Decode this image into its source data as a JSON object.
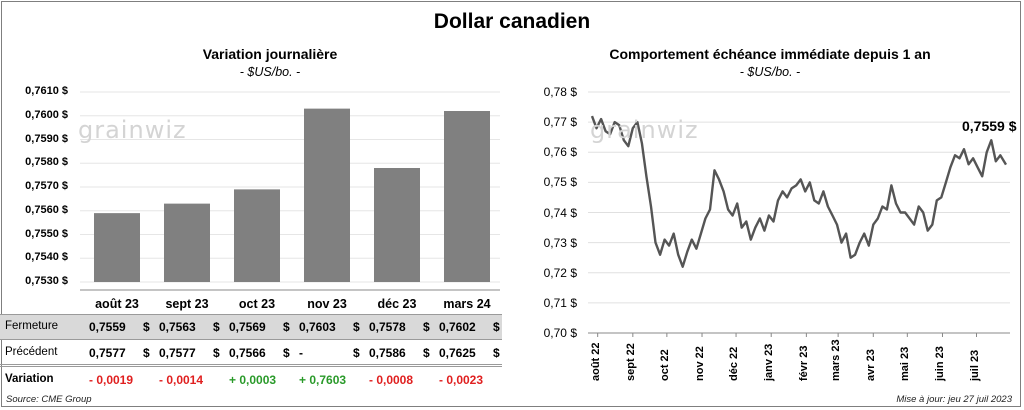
{
  "title": "Dollar canadien",
  "left_chart": {
    "title": "Variation  journalière",
    "subtitle": "- $US/bo. -",
    "y_ticks": [
      "0,7610 $",
      "0,7600 $",
      "0,7590 $",
      "0,7580 $",
      "0,7570 $",
      "0,7560 $",
      "0,7550 $",
      "0,7540 $",
      "0,7530 $"
    ],
    "watermark": "grainwiz"
  },
  "right_chart": {
    "title": "Comportement échéance immédiate depuis 1 an",
    "subtitle": "- $US/bo. -",
    "y_ticks": [
      "0,78 $",
      "0,77 $",
      "0,76 $",
      "0,75 $",
      "0,74 $",
      "0,73 $",
      "0,72 $",
      "0,71 $",
      "0,70 $"
    ],
    "x_ticks": [
      "août 22",
      "sept 22",
      "oct 22",
      "nov 22",
      "déc 22",
      "janv 23",
      "févr 23",
      "mars 23",
      "avr 23",
      "mai 23",
      "juin 23",
      "juil 23"
    ],
    "last_value_label": "0,7559 $",
    "watermark": "grainwiz"
  },
  "table": {
    "row_labels": {
      "close": "Fermeture",
      "prev": "Précédent",
      "change": "Variation"
    },
    "close": [
      "0,7559",
      "0,7563",
      "0,7569",
      "0,7603",
      "0,7578",
      "0,7602"
    ],
    "prev": [
      "0,7577",
      "0,7577",
      "0,7566",
      "-",
      "0,7586",
      "0,7625"
    ],
    "change": [
      "- 0,0019",
      "- 0,0014",
      "+ 0,0003",
      "+ 0,7603",
      "- 0,0008",
      "- 0,0023"
    ],
    "currency": "$"
  },
  "footer": {
    "source": "Source: CME Group",
    "updated": "Mise à jour: jeu 27 juil 2023"
  },
  "chart_data": [
    {
      "type": "bar",
      "title": "Variation  journalière",
      "subtitle": "- $US/bo. -",
      "categories": [
        "août 23",
        "sept 23",
        "oct 23",
        "nov 23",
        "déc 23",
        "mars 24"
      ],
      "values": [
        0.7559,
        0.7563,
        0.7569,
        0.7603,
        0.7578,
        0.7602
      ],
      "ylim": [
        0.753,
        0.761
      ],
      "color": "#808080"
    },
    {
      "type": "line",
      "title": "Comportement échéance immédiate depuis 1 an",
      "subtitle": "- $US/bo. -",
      "x": [
        "2022-07-27",
        "2022-07-31",
        "2022-08-04",
        "2022-08-08",
        "2022-08-12",
        "2022-08-16",
        "2022-08-20",
        "2022-08-24",
        "2022-08-28",
        "2022-09-01",
        "2022-09-05",
        "2022-09-09",
        "2022-09-13",
        "2022-09-17",
        "2022-09-21",
        "2022-09-25",
        "2022-09-29",
        "2022-10-03",
        "2022-10-07",
        "2022-10-11",
        "2022-10-15",
        "2022-10-19",
        "2022-10-23",
        "2022-10-27",
        "2022-10-31",
        "2022-11-04",
        "2022-11-08",
        "2022-11-12",
        "2022-11-16",
        "2022-11-20",
        "2022-11-24",
        "2022-11-28",
        "2022-12-02",
        "2022-12-06",
        "2022-12-10",
        "2022-12-14",
        "2022-12-18",
        "2022-12-22",
        "2022-12-26",
        "2022-12-30",
        "2023-01-03",
        "2023-01-07",
        "2023-01-11",
        "2023-01-15",
        "2023-01-19",
        "2023-01-23",
        "2023-01-27",
        "2023-01-31",
        "2023-02-04",
        "2023-02-08",
        "2023-02-12",
        "2023-02-16",
        "2023-02-20",
        "2023-02-24",
        "2023-02-28",
        "2023-03-04",
        "2023-03-08",
        "2023-03-12",
        "2023-03-16",
        "2023-03-20",
        "2023-03-24",
        "2023-03-28",
        "2023-04-01",
        "2023-04-05",
        "2023-04-09",
        "2023-04-13",
        "2023-04-17",
        "2023-04-21",
        "2023-04-25",
        "2023-04-29",
        "2023-05-03",
        "2023-05-07",
        "2023-05-11",
        "2023-05-15",
        "2023-05-19",
        "2023-05-23",
        "2023-05-27",
        "2023-05-31",
        "2023-06-04",
        "2023-06-08",
        "2023-06-12",
        "2023-06-16",
        "2023-06-20",
        "2023-06-24",
        "2023-06-28",
        "2023-07-02",
        "2023-07-06",
        "2023-07-10",
        "2023-07-14",
        "2023-07-18",
        "2023-07-22",
        "2023-07-27"
      ],
      "values": [
        0.772,
        0.768,
        0.771,
        0.767,
        0.766,
        0.77,
        0.769,
        0.764,
        0.762,
        0.768,
        0.77,
        0.763,
        0.752,
        0.742,
        0.73,
        0.726,
        0.731,
        0.729,
        0.733,
        0.726,
        0.722,
        0.727,
        0.731,
        0.728,
        0.733,
        0.738,
        0.741,
        0.754,
        0.751,
        0.747,
        0.741,
        0.739,
        0.743,
        0.735,
        0.737,
        0.731,
        0.735,
        0.738,
        0.734,
        0.739,
        0.737,
        0.744,
        0.747,
        0.745,
        0.748,
        0.749,
        0.751,
        0.747,
        0.75,
        0.744,
        0.743,
        0.747,
        0.742,
        0.739,
        0.736,
        0.73,
        0.733,
        0.725,
        0.726,
        0.73,
        0.733,
        0.729,
        0.736,
        0.738,
        0.742,
        0.741,
        0.749,
        0.743,
        0.74,
        0.74,
        0.738,
        0.736,
        0.742,
        0.74,
        0.734,
        0.736,
        0.744,
        0.745,
        0.75,
        0.755,
        0.759,
        0.758,
        0.761,
        0.756,
        0.758,
        0.755,
        0.752,
        0.76,
        0.764,
        0.757,
        0.759,
        0.7559
      ],
      "ylim": [
        0.7,
        0.78
      ],
      "last_value": "0,7559 $",
      "color": "#555555"
    }
  ]
}
